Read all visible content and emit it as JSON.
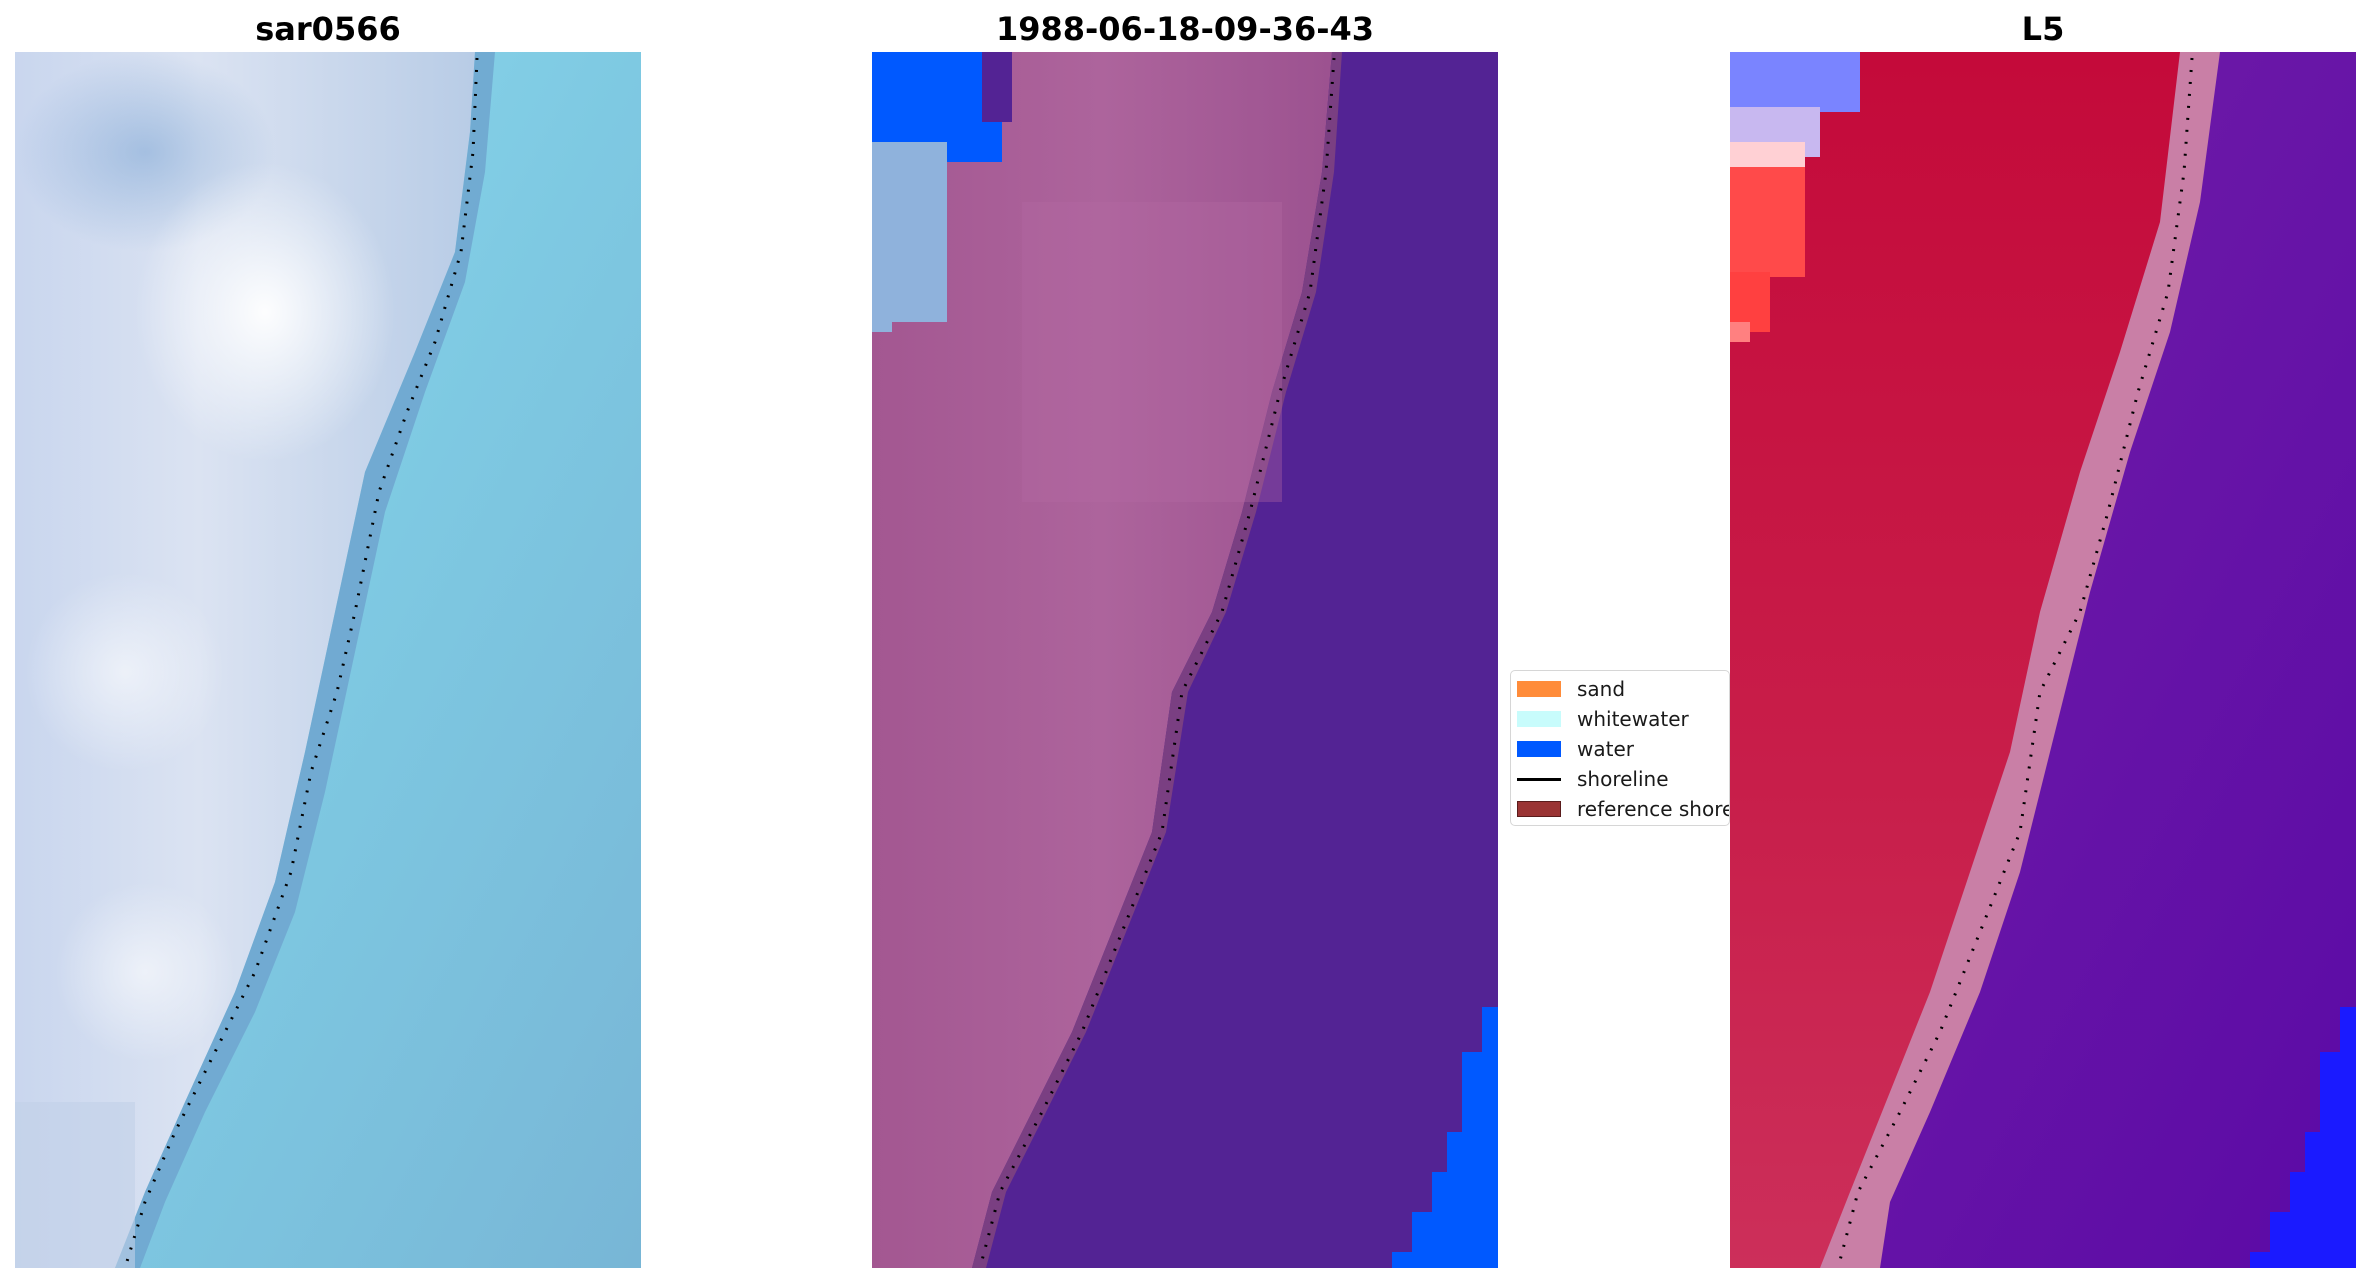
{
  "panels": [
    {
      "title": "sar0566",
      "kind": "rgb-image",
      "colors": {
        "land": "#cdd8ec",
        "land_bright": "#f4f6fb",
        "shoreline_band": "#6ea6cf",
        "water": "#7cc6de",
        "water_light": "#8fdcf0"
      }
    },
    {
      "title": "1988-06-18-09-36-43",
      "kind": "classified-overlay",
      "colors": {
        "sand_overlay": "#a65a95",
        "sand_overlay_light": "#b26aa0",
        "water_overlay": "#532394",
        "water_class": "#0059ff",
        "whitewater_tint": "#8fb2dc",
        "reference_band": "#7a3f82"
      }
    },
    {
      "title": "L5",
      "kind": "index-map",
      "colors": {
        "land": "#c40e3e",
        "land_light": "#c8204f",
        "corner_red": "#ff4040",
        "corner_blue": "#7a84ff",
        "transition": "#c97fa6",
        "water": "#6b1aa8",
        "water_dark": "#5d0aa6",
        "water_blue": "#1a1aff"
      }
    }
  ],
  "legend": {
    "items": [
      {
        "label": "sand",
        "type": "patch",
        "color": "#ff8c3a"
      },
      {
        "label": "whitewater",
        "type": "patch",
        "color": "#c8fcfc"
      },
      {
        "label": "water",
        "type": "patch",
        "color": "#0059ff"
      },
      {
        "label": "shoreline",
        "type": "line",
        "color": "#000000"
      },
      {
        "label": "reference shoreline",
        "type": "patch",
        "color": "#9a3434"
      }
    ]
  },
  "shoreline_color": "#000000"
}
